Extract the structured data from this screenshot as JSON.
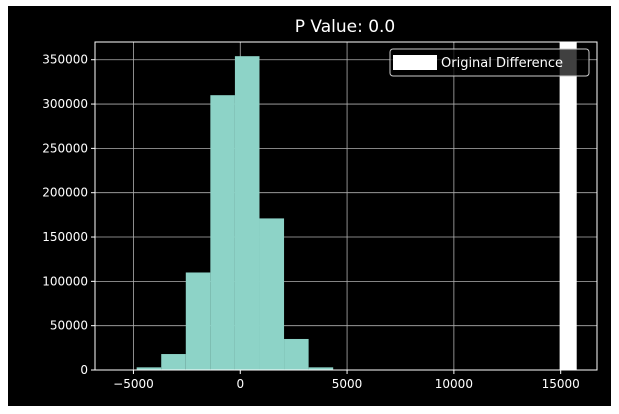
{
  "chart_data": {
    "type": "bar",
    "title": "P Value: 0.0",
    "xlabel": "",
    "ylabel": "",
    "xlim": [
      -6800,
      16700
    ],
    "ylim": [
      0,
      370000
    ],
    "xticks": [
      -5000,
      0,
      5000,
      10000,
      15000
    ],
    "xtick_labels": [
      "−5000",
      "0",
      "5000",
      "10000",
      "15000"
    ],
    "yticks": [
      0,
      50000,
      100000,
      150000,
      200000,
      250000,
      300000,
      350000
    ],
    "ytick_labels": [
      "0",
      "50000",
      "100000",
      "150000",
      "200000",
      "250000",
      "300000",
      "350000"
    ],
    "grid": true,
    "background": "#000000",
    "bin_width": 1150,
    "series": [
      {
        "kind": "histogram",
        "color": "#8dd3c7",
        "bins": [
          {
            "x_start": -4850,
            "x_end": -3700,
            "count": 3000
          },
          {
            "x_start": -3700,
            "x_end": -2550,
            "count": 18000
          },
          {
            "x_start": -2550,
            "x_end": -1400,
            "count": 110000
          },
          {
            "x_start": -1400,
            "x_end": -250,
            "count": 310000
          },
          {
            "x_start": -250,
            "x_end": 900,
            "count": 354000
          },
          {
            "x_start": 900,
            "x_end": 2050,
            "count": 171000
          },
          {
            "x_start": 2050,
            "x_end": 3200,
            "count": 35000
          },
          {
            "x_start": 3200,
            "x_end": 4350,
            "count": 3000
          }
        ]
      },
      {
        "name": "Original Difference",
        "kind": "vertical-line",
        "color": "#ffffff",
        "x": 15350
      }
    ],
    "legend": {
      "placement": "top-right",
      "entries": [
        {
          "label": "Original Difference",
          "color": "#ffffff"
        }
      ]
    }
  }
}
